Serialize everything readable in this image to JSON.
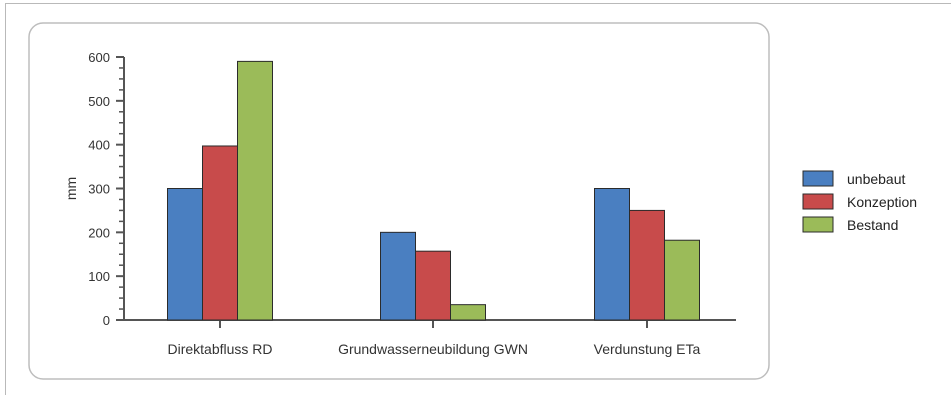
{
  "chart_data": {
    "type": "bar",
    "title": "",
    "xlabel": "",
    "ylabel": "mm",
    "ylim": [
      0,
      600
    ],
    "yticks": [
      0,
      100,
      200,
      300,
      400,
      500,
      600
    ],
    "grid": false,
    "legend_position": "right",
    "categories": [
      "Direktabfluss RD",
      "Grundwasserneubildung GWN",
      "Verdunstung ETa"
    ],
    "series": [
      {
        "name": "unbebaut",
        "color": "#4a7fc1",
        "values": [
          300,
          200,
          300
        ]
      },
      {
        "name": "Konzeption",
        "color": "#c84b4b",
        "values": [
          397,
          157,
          250
        ]
      },
      {
        "name": "Bestand",
        "color": "#9bbb59",
        "values": [
          590,
          35,
          182
        ]
      }
    ]
  }
}
